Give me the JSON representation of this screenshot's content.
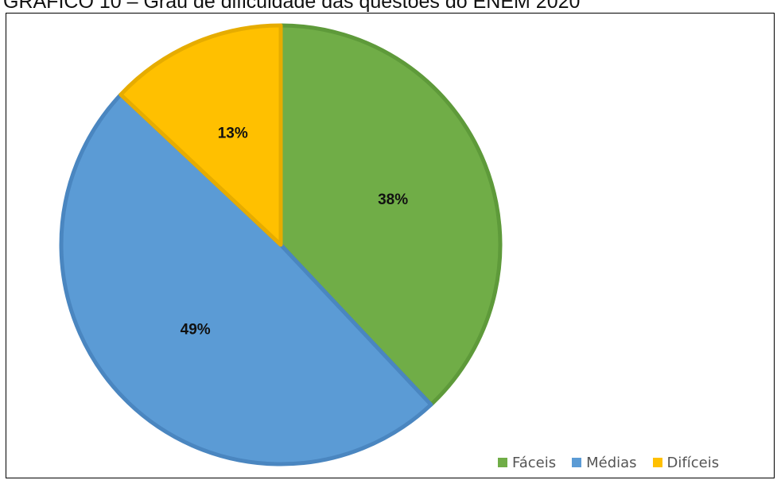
{
  "title": "GRÁFICO 10 – Grau de dificuldade das questões do ENEM 2020",
  "chart_data": {
    "type": "pie",
    "title": "GRÁFICO 10 – Grau de dificuldade das questões do ENEM 2020",
    "categories": [
      "Fáceis",
      "Médias",
      "Difíceis"
    ],
    "values": [
      38,
      49,
      13
    ],
    "labels": [
      "38%",
      "49%",
      "13%"
    ],
    "colors": [
      "#70AD47",
      "#5B9BD5",
      "#FFC000"
    ],
    "start_angle": "12 o'clock",
    "direction": "clockwise",
    "legend_position": "bottom-right"
  }
}
